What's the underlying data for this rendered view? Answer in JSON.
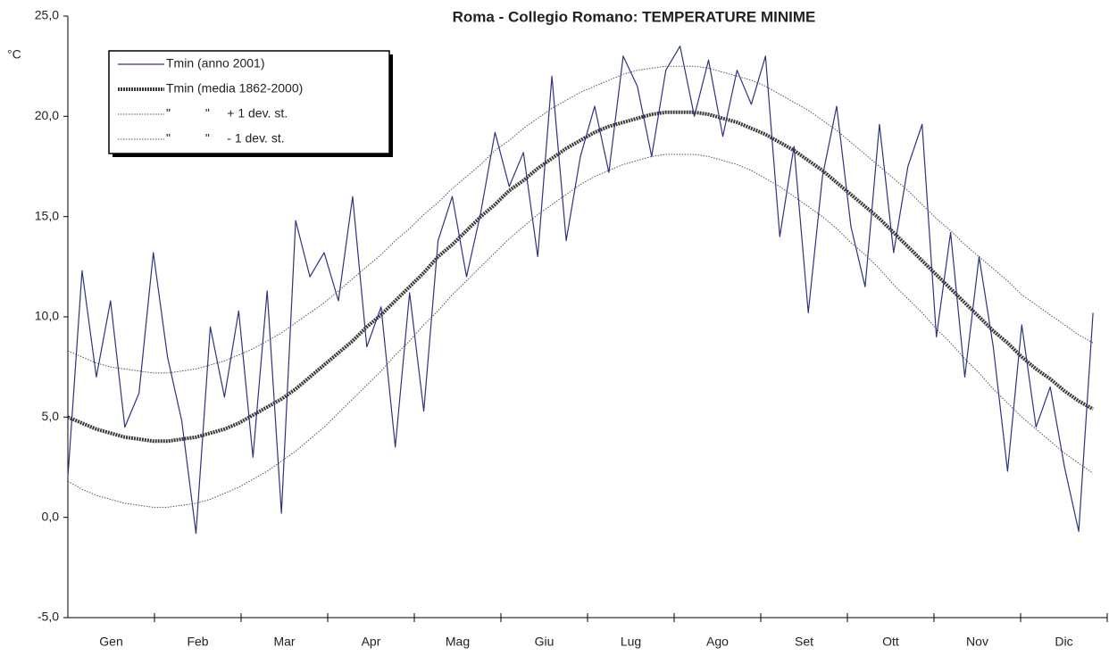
{
  "chart_data": {
    "type": "line",
    "title": "Roma - Collegio Romano: TEMPERATURE MINIME",
    "y_label": "°C",
    "categories": [
      "Gen",
      "Feb",
      "Mar",
      "Apr",
      "Mag",
      "Giu",
      "Lug",
      "Ago",
      "Set",
      "Ott",
      "Nov",
      "Dic"
    ],
    "x": [
      0,
      5,
      10,
      15,
      20,
      25,
      30,
      35,
      40,
      45,
      50,
      55,
      60,
      65,
      70,
      75,
      80,
      85,
      90,
      95,
      100,
      105,
      110,
      115,
      120,
      125,
      130,
      135,
      140,
      145,
      150,
      155,
      160,
      165,
      170,
      175,
      180,
      185,
      190,
      195,
      200,
      205,
      210,
      215,
      220,
      225,
      230,
      235,
      240,
      245,
      250,
      255,
      260,
      265,
      270,
      275,
      280,
      285,
      290,
      295,
      300,
      305,
      310,
      315,
      320,
      325,
      330,
      335,
      340,
      345,
      350,
      355,
      360
    ],
    "xlim": [
      0,
      365
    ],
    "ylim": [
      -5,
      25
    ],
    "yticks": [
      {
        "value": -5,
        "label": "-5,0"
      },
      {
        "value": 0,
        "label": "0,0"
      },
      {
        "value": 5,
        "label": "5,0"
      },
      {
        "value": 10,
        "label": "10,0"
      },
      {
        "value": 15,
        "label": "15,0"
      },
      {
        "value": 20,
        "label": "20,0"
      },
      {
        "value": 25,
        "label": "25,0"
      }
    ],
    "grid": false,
    "legend": "top-left",
    "series": [
      {
        "name": "Tmin (anno 2001)",
        "color": "#2e3380",
        "style": "thin",
        "values": [
          2.0,
          12.3,
          7.0,
          10.8,
          4.5,
          6.2,
          13.2,
          8.0,
          4.8,
          -0.8,
          9.5,
          6.0,
          10.3,
          3.0,
          11.3,
          0.2,
          14.8,
          12.0,
          13.2,
          10.8,
          16.0,
          8.5,
          10.5,
          3.5,
          11.2,
          5.3,
          13.8,
          16.0,
          12.0,
          15.2,
          19.2,
          16.5,
          18.2,
          13.0,
          22.0,
          13.8,
          18.0,
          20.5,
          17.2,
          23.0,
          21.5,
          18.0,
          22.3,
          23.5,
          20.0,
          22.8,
          19.0,
          22.3,
          20.6,
          23.0,
          14.0,
          18.5,
          10.2,
          17.0,
          20.5,
          14.5,
          11.5,
          19.6,
          13.2,
          17.5,
          19.6,
          9.0,
          14.2,
          7.0,
          13.0,
          8.5,
          2.3,
          9.6,
          4.5,
          6.5,
          2.5,
          -0.7,
          10.2
        ]
      },
      {
        "name": "Tmin (media 1862-2000)",
        "color": "#3a3a3a",
        "style": "thick",
        "values": [
          5.0,
          4.7,
          4.4,
          4.2,
          4.0,
          3.9,
          3.8,
          3.8,
          3.9,
          4.0,
          4.2,
          4.4,
          4.7,
          5.1,
          5.5,
          5.9,
          6.4,
          7.0,
          7.6,
          8.2,
          8.8,
          9.5,
          10.1,
          10.8,
          11.5,
          12.2,
          13.0,
          13.6,
          14.3,
          15.0,
          15.6,
          16.3,
          16.8,
          17.4,
          17.9,
          18.4,
          18.8,
          19.2,
          19.5,
          19.7,
          19.9,
          20.1,
          20.2,
          20.2,
          20.2,
          20.1,
          19.9,
          19.7,
          19.4,
          19.1,
          18.7,
          18.3,
          17.8,
          17.3,
          16.7,
          16.1,
          15.5,
          14.9,
          14.2,
          13.5,
          12.8,
          12.1,
          11.4,
          10.7,
          10.0,
          9.3,
          8.7,
          8.0,
          7.4,
          6.9,
          6.3,
          5.8,
          5.4
        ]
      },
      {
        "name": "\"          \"     + 1 dev. st.",
        "color": "#555555",
        "style": "dotted",
        "values": [
          8.3,
          8.0,
          7.7,
          7.5,
          7.4,
          7.3,
          7.2,
          7.2,
          7.3,
          7.4,
          7.6,
          7.8,
          8.1,
          8.4,
          8.8,
          9.2,
          9.7,
          10.2,
          10.7,
          11.3,
          11.9,
          12.5,
          13.1,
          13.8,
          14.4,
          15.1,
          15.7,
          16.4,
          17.0,
          17.6,
          18.3,
          18.8,
          19.4,
          19.9,
          20.4,
          20.8,
          21.2,
          21.5,
          21.8,
          22.1,
          22.3,
          22.4,
          22.5,
          22.5,
          22.5,
          22.4,
          22.2,
          22.0,
          21.8,
          21.5,
          21.1,
          20.7,
          20.3,
          19.8,
          19.3,
          18.7,
          18.1,
          17.5,
          16.9,
          16.3,
          15.6,
          14.9,
          14.3,
          13.6,
          13.0,
          12.4,
          11.8,
          11.1,
          10.6,
          10.1,
          9.6,
          9.1,
          8.7
        ]
      },
      {
        "name": "\"          \"     - 1 dev. st.",
        "color": "#555555",
        "style": "dotted",
        "values": [
          1.8,
          1.4,
          1.1,
          0.9,
          0.7,
          0.6,
          0.5,
          0.5,
          0.6,
          0.7,
          0.9,
          1.2,
          1.5,
          1.9,
          2.3,
          2.8,
          3.3,
          3.9,
          4.5,
          5.2,
          5.9,
          6.6,
          7.3,
          8.1,
          8.8,
          9.6,
          10.3,
          11.1,
          11.8,
          12.5,
          13.2,
          13.9,
          14.5,
          15.1,
          15.6,
          16.1,
          16.6,
          17.0,
          17.3,
          17.6,
          17.8,
          18.0,
          18.1,
          18.1,
          18.1,
          18.0,
          17.8,
          17.6,
          17.3,
          16.9,
          16.5,
          16.0,
          15.5,
          15.0,
          14.4,
          13.7,
          13.1,
          12.4,
          11.6,
          10.9,
          10.2,
          9.4,
          8.7,
          7.9,
          7.2,
          6.4,
          5.7,
          5.0,
          4.4,
          3.8,
          3.2,
          2.7,
          2.2
        ]
      }
    ]
  }
}
